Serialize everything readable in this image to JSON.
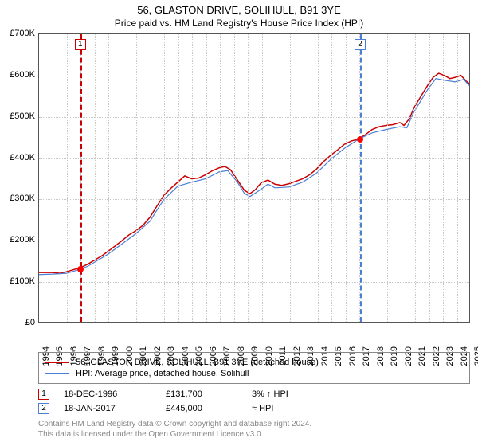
{
  "title_line1": "56, GLASTON DRIVE, SOLIHULL, B91 3YE",
  "title_line2": "Price paid vs. HM Land Registry's House Price Index (HPI)",
  "chart": {
    "type": "line",
    "x_min_year": 1994,
    "x_max_year": 2025,
    "x_years": [
      1994,
      1995,
      1996,
      1997,
      1998,
      1999,
      2000,
      2001,
      2002,
      2003,
      2004,
      2005,
      2006,
      2007,
      2008,
      2009,
      2010,
      2011,
      2012,
      2013,
      2014,
      2015,
      2016,
      2017,
      2018,
      2019,
      2020,
      2021,
      2022,
      2023,
      2024,
      2025
    ],
    "ylim": [
      0,
      700000
    ],
    "ytick_step": 100000,
    "y_ticks": [
      0,
      100000,
      200000,
      300000,
      400000,
      500000,
      600000,
      700000
    ],
    "y_tick_labels": [
      "£0",
      "£100K",
      "£200K",
      "£300K",
      "£400K",
      "£500K",
      "£600K",
      "£700K"
    ],
    "grid_color": "#c8c8c8",
    "border_color": "#555555",
    "background_color": "#ffffff",
    "series": [
      {
        "name": "property",
        "color": "#cc0000",
        "width": 1.5,
        "data": [
          [
            1994.0,
            120000
          ],
          [
            1995.0,
            120000
          ],
          [
            1995.5,
            118000
          ],
          [
            1996.0,
            122000
          ],
          [
            1996.96,
            131700
          ],
          [
            1997.5,
            140000
          ],
          [
            1998.0,
            150000
          ],
          [
            1998.5,
            160000
          ],
          [
            1999.0,
            172000
          ],
          [
            1999.5,
            185000
          ],
          [
            2000.0,
            198000
          ],
          [
            2000.5,
            212000
          ],
          [
            2001.0,
            222000
          ],
          [
            2001.5,
            235000
          ],
          [
            2002.0,
            255000
          ],
          [
            2002.5,
            282000
          ],
          [
            2003.0,
            308000
          ],
          [
            2003.5,
            325000
          ],
          [
            2004.0,
            340000
          ],
          [
            2004.5,
            355000
          ],
          [
            2005.0,
            348000
          ],
          [
            2005.5,
            350000
          ],
          [
            2006.0,
            358000
          ],
          [
            2006.5,
            368000
          ],
          [
            2007.0,
            375000
          ],
          [
            2007.4,
            378000
          ],
          [
            2007.8,
            370000
          ],
          [
            2008.3,
            345000
          ],
          [
            2008.8,
            320000
          ],
          [
            2009.2,
            312000
          ],
          [
            2009.6,
            322000
          ],
          [
            2010.0,
            338000
          ],
          [
            2010.5,
            345000
          ],
          [
            2011.0,
            335000
          ],
          [
            2011.5,
            332000
          ],
          [
            2012.0,
            336000
          ],
          [
            2012.5,
            342000
          ],
          [
            2013.0,
            348000
          ],
          [
            2013.5,
            358000
          ],
          [
            2014.0,
            372000
          ],
          [
            2014.5,
            390000
          ],
          [
            2015.0,
            405000
          ],
          [
            2015.5,
            418000
          ],
          [
            2016.0,
            432000
          ],
          [
            2016.5,
            440000
          ],
          [
            2017.05,
            445000
          ],
          [
            2017.5,
            455000
          ],
          [
            2018.0,
            468000
          ],
          [
            2018.5,
            475000
          ],
          [
            2019.0,
            478000
          ],
          [
            2019.5,
            480000
          ],
          [
            2020.0,
            485000
          ],
          [
            2020.3,
            478000
          ],
          [
            2020.7,
            495000
          ],
          [
            2021.0,
            520000
          ],
          [
            2021.5,
            548000
          ],
          [
            2022.0,
            575000
          ],
          [
            2022.4,
            595000
          ],
          [
            2022.8,
            605000
          ],
          [
            2023.2,
            600000
          ],
          [
            2023.6,
            592000
          ],
          [
            2024.0,
            595000
          ],
          [
            2024.4,
            600000
          ],
          [
            2024.8,
            585000
          ],
          [
            2025.0,
            580000
          ]
        ]
      },
      {
        "name": "hpi",
        "color": "#4a7fd4",
        "width": 1.2,
        "data": [
          [
            1994.0,
            115000
          ],
          [
            1995.0,
            116000
          ],
          [
            1996.0,
            118000
          ],
          [
            1996.96,
            128000
          ],
          [
            1997.5,
            135000
          ],
          [
            1998.0,
            145000
          ],
          [
            1999.0,
            165000
          ],
          [
            2000.0,
            190000
          ],
          [
            2001.0,
            215000
          ],
          [
            2002.0,
            245000
          ],
          [
            2002.5,
            272000
          ],
          [
            2003.0,
            298000
          ],
          [
            2004.0,
            330000
          ],
          [
            2005.0,
            340000
          ],
          [
            2006.0,
            348000
          ],
          [
            2007.0,
            365000
          ],
          [
            2007.6,
            368000
          ],
          [
            2008.3,
            340000
          ],
          [
            2008.8,
            312000
          ],
          [
            2009.2,
            305000
          ],
          [
            2009.8,
            318000
          ],
          [
            2010.5,
            335000
          ],
          [
            2011.0,
            326000
          ],
          [
            2012.0,
            328000
          ],
          [
            2013.0,
            340000
          ],
          [
            2014.0,
            362000
          ],
          [
            2015.0,
            395000
          ],
          [
            2016.0,
            422000
          ],
          [
            2017.05,
            445000
          ],
          [
            2018.0,
            460000
          ],
          [
            2019.0,
            468000
          ],
          [
            2020.0,
            475000
          ],
          [
            2020.5,
            472000
          ],
          [
            2021.0,
            510000
          ],
          [
            2022.0,
            565000
          ],
          [
            2022.6,
            592000
          ],
          [
            2023.2,
            588000
          ],
          [
            2024.0,
            584000
          ],
          [
            2024.6,
            590000
          ],
          [
            2025.0,
            575000
          ]
        ]
      }
    ],
    "markers": [
      {
        "id": "1",
        "year": 1996.96,
        "value": 131700,
        "color": "#cc0000"
      },
      {
        "id": "2",
        "year": 2017.05,
        "value": 445000,
        "color": "#4a7fd4"
      }
    ]
  },
  "legend": {
    "items": [
      {
        "label": "56, GLASTON DRIVE, SOLIHULL, B91 3YE (detached house)",
        "color": "#cc0000"
      },
      {
        "label": "HPI: Average price, detached house, Solihull",
        "color": "#4a7fd4"
      }
    ]
  },
  "transactions": [
    {
      "marker": "1",
      "marker_color": "#cc0000",
      "date": "18-DEC-1996",
      "price": "£131,700",
      "note": "3% ↑ HPI"
    },
    {
      "marker": "2",
      "marker_color": "#4a7fd4",
      "date": "18-JAN-2017",
      "price": "£445,000",
      "note": "≈ HPI"
    }
  ],
  "footer_line1": "Contains HM Land Registry data © Crown copyright and database right 2024.",
  "footer_line2": "This data is licensed under the Open Government Licence v3.0.",
  "fonts": {
    "title_size": 13,
    "subtitle_size": 12,
    "axis_size": 11,
    "legend_size": 11,
    "footer_size": 10
  }
}
